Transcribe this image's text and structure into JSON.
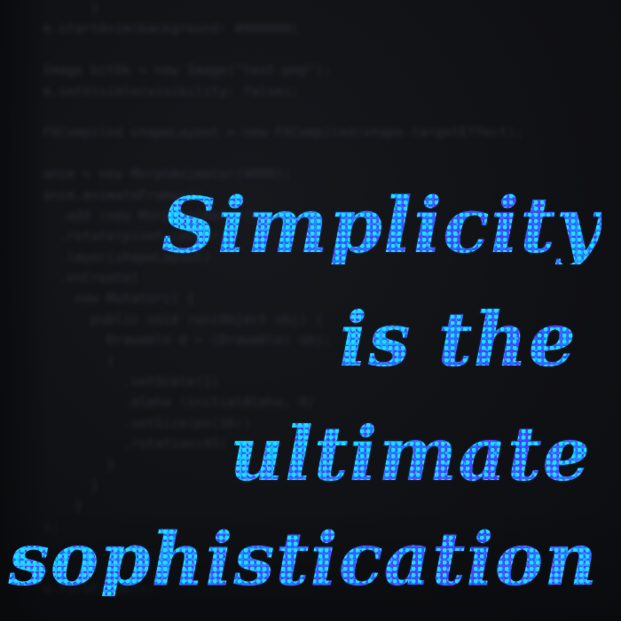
{
  "background": {
    "code_lines": [
      "        }",
      "  m.startAnim(background: #000000)",
      "",
      "  Image bitOk = new Image(\"text.png\");",
      "  m.setVisible(visibility: false);",
      "",
      "  FXCompiled shapeLayout = new FXCompiled(shape.targetEffect);",
      "",
      "  anim = new MorphAnimator(4000);",
      "  anim.animateFrames()",
      "    .add (new MorphAnimator())",
      "    .rotate(pivot.center)",
      "    .layer(shapeLayout)",
      "    .onCreate(",
      "      new Mutator() {",
      "        public void run(Object obj) {",
      "          Drawable d = (Drawable) obj;",
      "          {",
      "            .setScale(1)",
      "            .alpha (initialAlpha, 0)",
      "            .setSize(px(16))",
      "            .rotation(45)",
      "          }",
      "        }",
      "      }",
      "  );",
      "",
      "",
      "  m.fireFrame();"
    ]
  },
  "quote": {
    "line_1": "Simplicity",
    "line_2": "is the",
    "line_3": "ultimate",
    "line_4": "sophistication"
  },
  "colors": {
    "background": "#101114",
    "text_cyan": "#19e0ff",
    "text_blue": "#2a7bff",
    "text_violet": "#4a3dff"
  }
}
